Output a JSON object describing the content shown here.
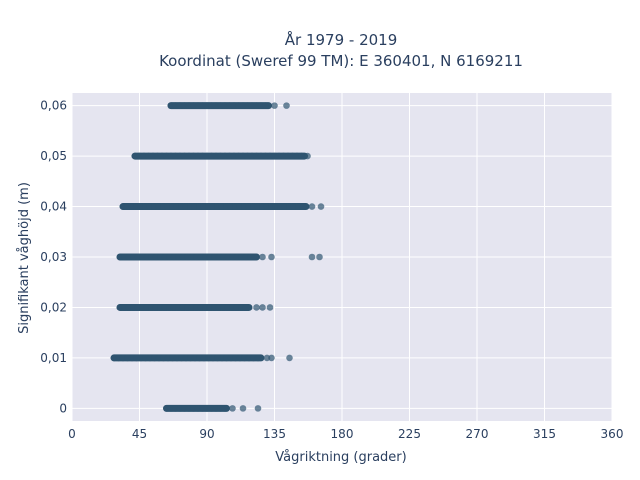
{
  "chart_data": {
    "type": "scatter",
    "title_line1": "År 1979 - 2019",
    "title_line2": "Koordinat (Sweref 99 TM): E 360401, N 6169211",
    "xlabel": "Vågriktning (grader)",
    "ylabel": "Signifikant våghöjd (m)",
    "xlim": [
      0,
      360
    ],
    "ylim": [
      -0.0025,
      0.0625
    ],
    "x_ticks": [
      0,
      45,
      90,
      135,
      180,
      225,
      270,
      315,
      360
    ],
    "x_tick_labels": [
      "0",
      "45",
      "90",
      "135",
      "180",
      "225",
      "270",
      "315",
      "360"
    ],
    "y_ticks": [
      0,
      0.01,
      0.02,
      0.03,
      0.04,
      0.05,
      0.06
    ],
    "y_tick_labels": [
      "0",
      "0,01",
      "0,02",
      "0,03",
      "0,04",
      "0,05",
      "0,06"
    ],
    "grid": true,
    "marker_color": "#2f5570",
    "plot_background": "#e5e5f0",
    "rows": [
      {
        "y": 0.06,
        "dense_from": 66,
        "dense_to": 131,
        "outliers": [
          135,
          143
        ]
      },
      {
        "y": 0.05,
        "dense_from": 42,
        "dense_to": 155,
        "outliers": [
          157
        ]
      },
      {
        "y": 0.04,
        "dense_from": 34,
        "dense_to": 156,
        "outliers": [
          160,
          166
        ]
      },
      {
        "y": 0.03,
        "dense_from": 32,
        "dense_to": 123,
        "outliers": [
          127,
          133,
          160,
          165
        ]
      },
      {
        "y": 0.02,
        "dense_from": 32,
        "dense_to": 118,
        "outliers": [
          123,
          127,
          132
        ]
      },
      {
        "y": 0.01,
        "dense_from": 28,
        "dense_to": 126,
        "outliers": [
          130,
          133,
          145
        ]
      },
      {
        "y": 0.0,
        "dense_from": 63,
        "dense_to": 103,
        "outliers": [
          107,
          114,
          124
        ]
      }
    ]
  }
}
